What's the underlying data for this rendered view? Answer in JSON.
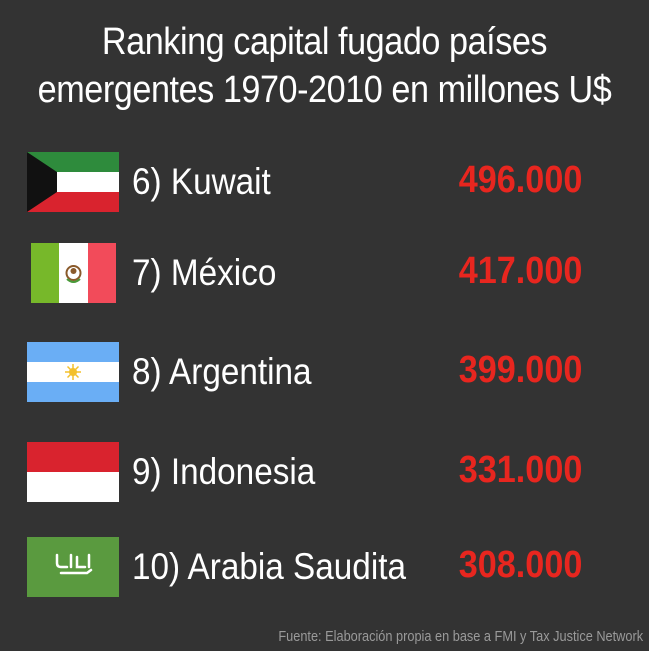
{
  "chart_data": {
    "type": "table",
    "title_line1": "Ranking capital fugado países",
    "title_line2": "emergentes 1970-2010 en millones U$",
    "value_color": "#e8261f",
    "rows": [
      {
        "label": "6) Kuwait",
        "value": "496.000",
        "amount": 496000,
        "flag_icon": "kuwait-flag-icon"
      },
      {
        "label": "7) México",
        "value": "417.000",
        "amount": 417000,
        "flag_icon": "mexico-flag-icon"
      },
      {
        "label": "8) Argentina",
        "value": "399.000",
        "amount": 399000,
        "flag_icon": "argentina-flag-icon"
      },
      {
        "label": "9) Indonesia",
        "value": "331.000",
        "amount": 331000,
        "flag_icon": "indonesia-flag-icon"
      },
      {
        "label": "10) Arabia Saudita",
        "value": "308.000",
        "amount": 308000,
        "flag_icon": "saudi-arabia-flag-icon"
      }
    ],
    "source": "Fuente: Elaboración propia en base a FMI y Tax Justice Network"
  }
}
